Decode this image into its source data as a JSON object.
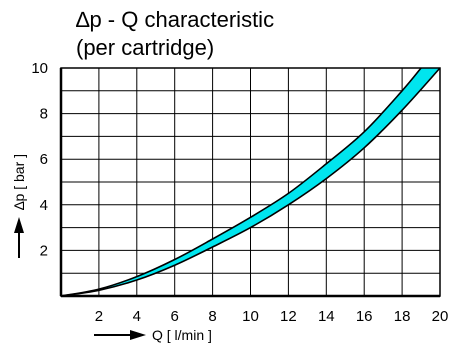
{
  "chart_data": {
    "type": "area",
    "title_lines": [
      "∆p - Q characteristic",
      "(per cartridge)"
    ],
    "xlabel": "Q [ l/min ]",
    "ylabel": "∆p [ bar ]",
    "xlim": [
      0,
      20
    ],
    "ylim": [
      0,
      10
    ],
    "x_ticks": [
      2,
      4,
      6,
      8,
      10,
      12,
      14,
      16,
      18,
      20
    ],
    "x_tick_labels": [
      "2",
      "4",
      "6",
      "8",
      "10",
      "12",
      "14",
      "16",
      "18",
      "20"
    ],
    "y_ticks": [
      2,
      4,
      6,
      8,
      10
    ],
    "y_tick_labels": [
      "2",
      "4",
      "6",
      "8",
      "10"
    ],
    "x_grid_step": 2,
    "y_grid_step": 1,
    "grid": true,
    "band": {
      "upper": {
        "x": [
          0,
          2,
          4,
          6,
          8,
          10,
          12,
          14,
          16,
          18,
          19
        ],
        "y": [
          0,
          0.3,
          0.85,
          1.6,
          2.5,
          3.45,
          4.5,
          5.8,
          7.2,
          9.0,
          10.0
        ]
      },
      "lower": {
        "x": [
          0,
          2,
          4,
          6,
          8,
          10,
          12,
          14,
          16,
          18,
          20
        ],
        "y": [
          0,
          0.25,
          0.7,
          1.35,
          2.15,
          3.0,
          4.0,
          5.15,
          6.5,
          8.15,
          10.0
        ]
      }
    },
    "colors": {
      "band_fill": "#00e5ee",
      "lines": "#000000",
      "grid": "#000000"
    }
  }
}
